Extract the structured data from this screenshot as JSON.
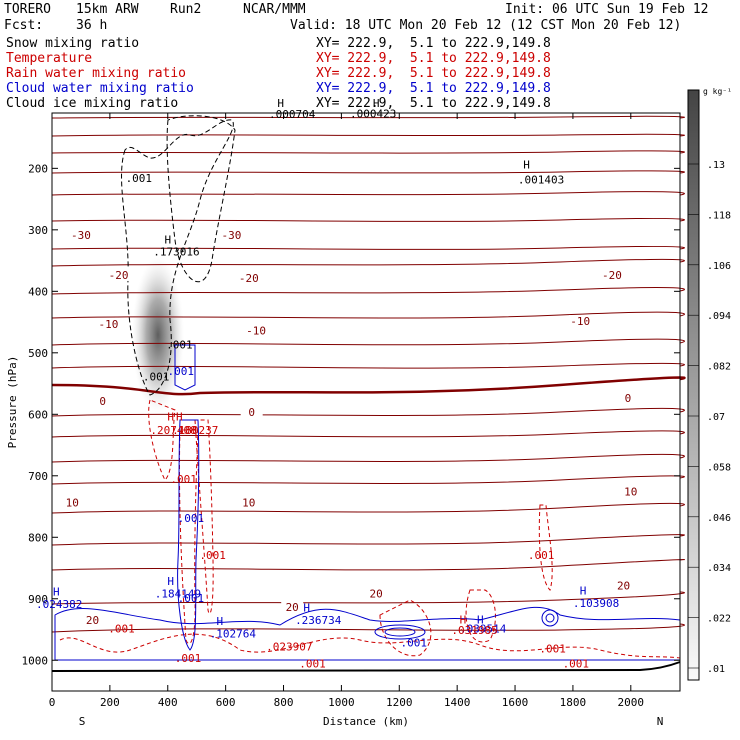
{
  "header": {
    "model": "TORERO",
    "resolution": "15km ARW",
    "run": "Run2",
    "org": "NCAR/MMM",
    "init": "Init: 06 UTC Sun 19 Feb 12",
    "fcst_label": "Fcst:",
    "fcst_value": "36 h",
    "valid": "Valid: 18 UTC Mon 20 Feb 12 (12 CST Mon 20 Feb 12)"
  },
  "legend": [
    {
      "name": "Snow mixing ratio",
      "xy": "XY= 222.9,  5.1 to 222.9,149.8",
      "color": "#000000"
    },
    {
      "name": "Temperature",
      "xy": "XY= 222.9,  5.1 to 222.9,149.8",
      "color": "#cc0000"
    },
    {
      "name": "Rain water mixing ratio",
      "xy": "XY= 222.9,  5.1 to 222.9,149.8",
      "color": "#cc0000"
    },
    {
      "name": "Cloud water mixing ratio",
      "xy": "XY= 222.9,  5.1 to 222.9,149.8",
      "color": "#0000cc"
    },
    {
      "name": "Cloud ice mixing ratio",
      "xy": "XY= 222.9,  5.1 to 222.9,149.8",
      "color": "#000000"
    }
  ],
  "chart_data": {
    "type": "cross-section",
    "xlabel": "Distance (km)",
    "ylabel": "Pressure (hPa)",
    "xlim": [
      0,
      2170
    ],
    "ylim": [
      1050,
      110
    ],
    "x_ticks": [
      "0",
      "200",
      "400",
      "600",
      "800",
      "1000",
      "1200",
      "1400",
      "1600",
      "1800",
      "2000"
    ],
    "y_ticks": [
      "200",
      "300",
      "400",
      "500",
      "600",
      "700",
      "800",
      "900",
      "1000"
    ],
    "x_ends": {
      "left": "S",
      "right": "N"
    },
    "colorbar": {
      "unit": "g kg⁻¹",
      "labels": [
        ".13",
        ".118",
        ".106",
        ".094",
        ".082",
        ".07",
        ".058",
        ".046",
        ".034",
        ".022",
        ".01"
      ]
    },
    "temperature_labels": [
      {
        "text": "-30",
        "x": 100,
        "p": 310
      },
      {
        "text": "-30",
        "x": 620,
        "p": 310
      },
      {
        "text": "-20",
        "x": 230,
        "p": 375
      },
      {
        "text": "-20",
        "x": 680,
        "p": 380
      },
      {
        "text": "-20",
        "x": 1935,
        "p": 375
      },
      {
        "text": "-10",
        "x": 195,
        "p": 455
      },
      {
        "text": "-10",
        "x": 705,
        "p": 465
      },
      {
        "text": "-10",
        "x": 1825,
        "p": 450
      },
      {
        "text": "0",
        "x": 175,
        "p": 580
      },
      {
        "text": "0",
        "x": 690,
        "p": 598
      },
      {
        "text": "0",
        "x": 1990,
        "p": 575
      },
      {
        "text": "10",
        "x": 70,
        "p": 745
      },
      {
        "text": "10",
        "x": 680,
        "p": 745
      },
      {
        "text": "10",
        "x": 2000,
        "p": 727
      },
      {
        "text": "20",
        "x": 140,
        "p": 936
      },
      {
        "text": "20",
        "x": 830,
        "p": 915
      },
      {
        "text": "20",
        "x": 1120,
        "p": 893
      },
      {
        "text": "20",
        "x": 1975,
        "p": 880
      }
    ],
    "maxima_labels": [
      {
        "text": ".000704",
        "x": 830,
        "p": 118,
        "color": "#000000"
      },
      {
        "text": ".000423",
        "x": 1110,
        "p": 117,
        "color": "#000000"
      },
      {
        "text": ".001403",
        "x": 1690,
        "p": 225,
        "color": "#000000"
      },
      {
        "text": ".173016",
        "x": 430,
        "p": 342,
        "color": "#000000"
      },
      {
        "text": ".184149",
        "x": 435,
        "p": 898,
        "color": "#0000cc"
      },
      {
        "text": ".102764",
        "x": 625,
        "p": 963,
        "color": "#0000cc"
      },
      {
        "text": ".236734",
        "x": 920,
        "p": 941,
        "color": "#0000cc"
      },
      {
        "text": ".103908",
        "x": 1880,
        "p": 913,
        "color": "#0000cc"
      },
      {
        "text": ".039514",
        "x": 1490,
        "p": 955,
        "color": "#0000cc"
      },
      {
        "text": ".024382",
        "x": 25,
        "p": 915,
        "color": "#0000cc"
      },
      {
        "text": ".207408",
        "x": 420,
        "p": 632,
        "color": "#cc0000"
      },
      {
        "text": ".180237",
        "x": 495,
        "p": 632,
        "color": "#cc0000"
      },
      {
        "text": ".023907",
        "x": 820,
        "p": 984,
        "color": "#cc0000"
      },
      {
        "text": ".031985",
        "x": 1460,
        "p": 957,
        "color": "#cc0000"
      }
    ],
    "contour_001_labels": [
      {
        "text": ".001",
        "x": 300,
        "p": 222,
        "color": "#000000"
      },
      {
        "text": ".001",
        "x": 440,
        "p": 493,
        "color": "#000000"
      },
      {
        "text": ".001",
        "x": 360,
        "p": 545,
        "color": "#000000"
      },
      {
        "text": ".001",
        "x": 445,
        "p": 536,
        "color": "#0000cc"
      },
      {
        "text": ".001",
        "x": 455,
        "p": 712,
        "color": "#cc0000"
      },
      {
        "text": ".001",
        "x": 480,
        "p": 775,
        "color": "#0000cc"
      },
      {
        "text": ".001",
        "x": 555,
        "p": 835,
        "color": "#cc0000"
      },
      {
        "text": ".001",
        "x": 1690,
        "p": 835,
        "color": "#cc0000"
      },
      {
        "text": ".001",
        "x": 480,
        "p": 905,
        "color": "#0000cc"
      },
      {
        "text": ".001",
        "x": 470,
        "p": 1003,
        "color": "#cc0000"
      },
      {
        "text": ".001",
        "x": 900,
        "p": 1012,
        "color": "#cc0000"
      },
      {
        "text": ".001",
        "x": 1250,
        "p": 978,
        "color": "#0000cc"
      },
      {
        "text": ".001",
        "x": 1730,
        "p": 987,
        "color": "#cc0000"
      },
      {
        "text": ".001",
        "x": 1810,
        "p": 1012,
        "color": "#cc0000"
      },
      {
        "text": ".001",
        "x": 240,
        "p": 955,
        "color": "#cc0000"
      }
    ],
    "h_markers": [
      {
        "x": 790,
        "p": 100,
        "color": "#000000"
      },
      {
        "x": 1120,
        "p": 100,
        "color": "#000000"
      },
      {
        "x": 1640,
        "p": 200,
        "color": "#000000"
      },
      {
        "x": 400,
        "p": 322,
        "color": "#000000"
      },
      {
        "x": 410,
        "p": 878,
        "color": "#0000cc"
      },
      {
        "x": 580,
        "p": 943,
        "color": "#0000cc"
      },
      {
        "x": 880,
        "p": 921,
        "color": "#0000cc"
      },
      {
        "x": 1835,
        "p": 893,
        "color": "#0000cc"
      },
      {
        "x": 1480,
        "p": 940,
        "color": "#0000cc"
      },
      {
        "x": 15,
        "p": 895,
        "color": "#0000cc"
      },
      {
        "x": 410,
        "p": 610,
        "color": "#cc0000"
      },
      {
        "x": 440,
        "p": 610,
        "color": "#cc0000"
      },
      {
        "x": 1420,
        "p": 940,
        "color": "#cc0000"
      }
    ]
  }
}
